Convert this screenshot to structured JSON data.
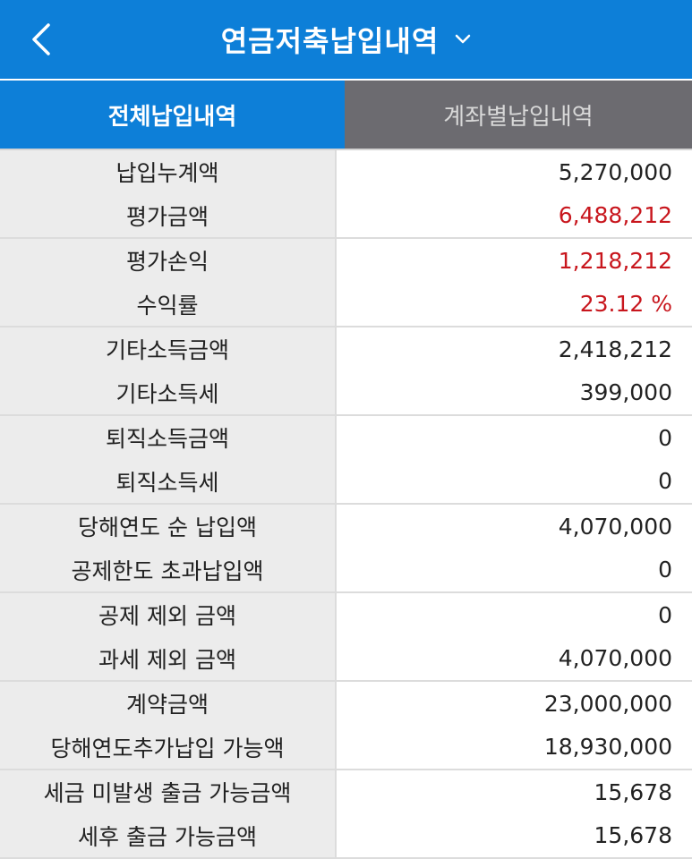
{
  "header": {
    "title": "연금저축납입내역"
  },
  "tabs": [
    {
      "label": "전체납입내역"
    },
    {
      "label": "계좌별납입내역"
    }
  ],
  "rows": [
    [
      {
        "label": "납입누계액",
        "value": "5,270,000"
      },
      {
        "label": "평가금액",
        "value": "6,488,212",
        "red": true
      }
    ],
    [
      {
        "label": "평가손익",
        "value": "1,218,212",
        "red": true
      },
      {
        "label": "수익률",
        "value": "23.12 %",
        "red": true
      }
    ],
    [
      {
        "label": "기타소득금액",
        "value": "2,418,212"
      },
      {
        "label": "기타소득세",
        "value": "399,000"
      }
    ],
    [
      {
        "label": "퇴직소득금액",
        "value": "0"
      },
      {
        "label": "퇴직소득세",
        "value": "0"
      }
    ],
    [
      {
        "label": "당해연도 순 납입액",
        "value": "4,070,000"
      },
      {
        "label": "공제한도 초과납입액",
        "value": "0"
      }
    ],
    [
      {
        "label": "공제 제외 금액",
        "value": "0"
      },
      {
        "label": "과세 제외 금액",
        "value": "4,070,000"
      }
    ],
    [
      {
        "label": "계약금액",
        "value": "23,000,000"
      },
      {
        "label": "당해연도추가납입 가능액",
        "value": "18,930,000"
      }
    ],
    [
      {
        "label": "세금 미발생 출금 가능금액",
        "value": "15,678"
      },
      {
        "label": "세후 출금 가능금액",
        "value": "15,678"
      }
    ]
  ],
  "colors": {
    "accent": "#0d7fd8",
    "inactive_tab": "#6c6b70",
    "positive": "#c8161d"
  },
  "icons": {
    "back": "chevron-left-icon",
    "dropdown": "chevron-down-icon"
  }
}
